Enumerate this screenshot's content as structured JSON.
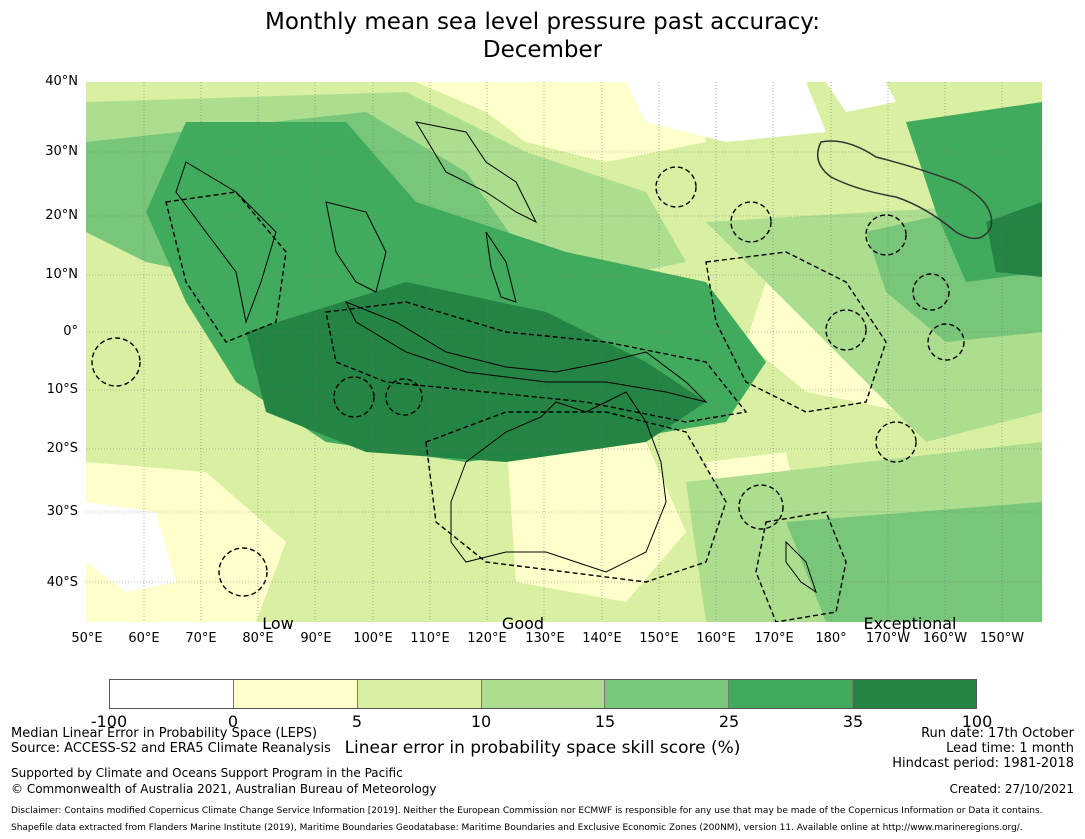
{
  "title": {
    "line1": "Monthly mean sea level pressure past accuracy:",
    "line2": "December"
  },
  "map": {
    "lat_labels": [
      "40°N",
      "30°N",
      "20°N",
      "10°N",
      "0°",
      "10°S",
      "20°S",
      "30°S",
      "40°S"
    ],
    "lon_labels": [
      "50°E",
      "60°E",
      "70°E",
      "80°E",
      "90°E",
      "100°E",
      "110°E",
      "120°E",
      "130°E",
      "140°E",
      "150°E",
      "160°E",
      "170°E",
      "180°",
      "170°W",
      "160°W",
      "150°W"
    ],
    "category_labels": {
      "low": "Low",
      "good": "Good",
      "exceptional": "Exceptional"
    }
  },
  "colorbar": {
    "ticks": [
      "-100",
      "0",
      "5",
      "10",
      "15",
      "25",
      "35",
      "100"
    ],
    "colors": [
      "#ffffff",
      "#ffffcc",
      "#d9f0a3",
      "#addd8e",
      "#78c679",
      "#41ab5d",
      "#238443"
    ],
    "title": "Linear error in probability space skill score (%)"
  },
  "footer": {
    "metric": "Median Linear Error in Probability Space (LEPS)",
    "source": "Source: ACCESS-S2 and ERA5 Climate Reanalysis",
    "support": "Supported by Climate and Oceans Support Program in the Pacific",
    "copyright": "© Commonwealth of Australia 2021, Australian Bureau of Meteorology",
    "run_date": "Run date: 17th October",
    "lead_time": "Lead time: 1 month",
    "hindcast": "Hindcast period: 1981-2018",
    "created": "Created: 27/10/2021",
    "disclaimer": "Disclaimer: Contains modified Copernicus Climate Change Service Information [2019]. Neither the European Commission nor ECMWF is responsible for any use that may be made of the Copernicus Information or Data it contains.",
    "shapefile": "Shapefile data extracted from Flanders Marine Institute (2019), Maritime Boundaries Geodatabase: Maritime Boundaries and Exclusive Economic Zones (200NM), version 11. Available online at http://www.marineregions.org/."
  }
}
